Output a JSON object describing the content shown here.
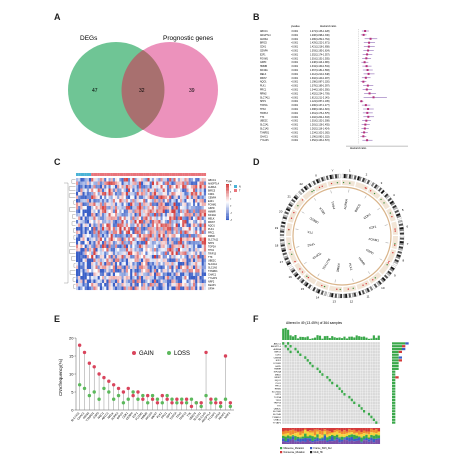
{
  "figure": {
    "panel_letters": [
      "A",
      "B",
      "C",
      "D",
      "E",
      "F"
    ]
  },
  "venn": {
    "left_label": "DEGs",
    "right_label": "Prognostic genes",
    "left_only": "47",
    "overlap": "32",
    "right_only": "39",
    "left_color": "#5fbf8a",
    "right_color": "#e97fb0"
  },
  "forest": {
    "header_gene": "",
    "header_pvalue": "pvalue",
    "header_hr": "Hazard ratio",
    "xlabel": "Hazard ratio",
    "rows": [
      {
        "gene": "ABCC1",
        "p": "<0.001",
        "hr": "1.274(1.136-1.428)",
        "est": 1.27,
        "lo": 1.14,
        "hi": 1.43
      },
      {
        "gene": "ANGPTL4",
        "p": "<0.001",
        "hr": "1.208(1.098-1.330)",
        "est": 1.21,
        "lo": 1.1,
        "hi": 1.33
      },
      {
        "gene": "AURKA",
        "p": "<0.001",
        "hr": "1.486(1.252-1.764)",
        "est": 1.49,
        "lo": 1.25,
        "hi": 1.76
      },
      {
        "gene": "BIRC5",
        "p": "<0.001",
        "hr": "1.429(1.222-1.671)",
        "est": 1.43,
        "lo": 1.22,
        "hi": 1.67
      },
      {
        "gene": "CDK1",
        "p": "<0.001",
        "hr": "1.421(1.218-1.658)",
        "est": 1.42,
        "lo": 1.22,
        "hi": 1.66
      },
      {
        "gene": "CENPA",
        "p": "<0.001",
        "hr": "1.393(1.195-1.624)",
        "est": 1.39,
        "lo": 1.2,
        "hi": 1.62
      },
      {
        "gene": "E2F1",
        "p": "<0.001",
        "hr": "1.352(1.174-1.557)",
        "est": 1.35,
        "lo": 1.17,
        "hi": 1.56
      },
      {
        "gene": "FOXM1",
        "p": "<0.001",
        "hr": "1.316(1.151-1.505)",
        "est": 1.32,
        "lo": 1.15,
        "hi": 1.51
      },
      {
        "gene": "G6PD",
        "p": "<0.001",
        "hr": "1.248(1.116-1.396)",
        "est": 1.25,
        "lo": 1.12,
        "hi": 1.4
      },
      {
        "gene": "HMMR",
        "p": "<0.001",
        "hr": "1.334(1.160-1.534)",
        "est": 1.33,
        "lo": 1.16,
        "hi": 1.53
      },
      {
        "gene": "KIF20A",
        "p": "<0.001",
        "hr": "1.367(1.181-1.583)",
        "est": 1.37,
        "lo": 1.18,
        "hi": 1.58
      },
      {
        "gene": "MELK",
        "p": "<0.001",
        "hr": "1.412(1.210-1.648)",
        "est": 1.41,
        "lo": 1.21,
        "hi": 1.65
      },
      {
        "gene": "MKI67",
        "p": "<0.001",
        "hr": "1.302(1.140-1.487)",
        "est": 1.3,
        "lo": 1.14,
        "hi": 1.49
      },
      {
        "gene": "NQO1",
        "p": "<0.001",
        "hr": "1.198(1.087-1.320)",
        "est": 1.2,
        "lo": 1.09,
        "hi": 1.32
      },
      {
        "gene": "PLK1",
        "p": "<0.001",
        "hr": "1.378(1.189-1.597)",
        "est": 1.38,
        "lo": 1.19,
        "hi": 1.6
      },
      {
        "gene": "PRC1",
        "p": "<0.001",
        "hr": "1.344(1.165-1.550)",
        "est": 1.34,
        "lo": 1.17,
        "hi": 1.55
      },
      {
        "gene": "RRM2",
        "p": "<0.001",
        "hr": "1.452(1.234-1.709)",
        "est": 1.45,
        "lo": 1.23,
        "hi": 1.71
      },
      {
        "gene": "SLC7A11",
        "p": "<0.001",
        "hr": "1.612(1.211-2.145)",
        "est": 1.61,
        "lo": 1.21,
        "hi": 2.15
      },
      {
        "gene": "SPP1",
        "p": "<0.001",
        "hr": "1.124(1.057-1.195)",
        "est": 1.12,
        "lo": 1.06,
        "hi": 1.2
      },
      {
        "gene": "TOP2A",
        "p": "<0.001",
        "hr": "1.296(1.137-1.477)",
        "est": 1.3,
        "lo": 1.14,
        "hi": 1.48
      },
      {
        "gene": "TPX2",
        "p": "<0.001",
        "hr": "1.388(1.193-1.615)",
        "est": 1.39,
        "lo": 1.19,
        "hi": 1.62
      },
      {
        "gene": "TRIP13",
        "p": "<0.001",
        "hr": "1.361(1.176-1.575)",
        "est": 1.36,
        "lo": 1.18,
        "hi": 1.58
      },
      {
        "gene": "TTK",
        "p": "<0.001",
        "hr": "1.402(1.204-1.633)",
        "est": 1.4,
        "lo": 1.2,
        "hi": 1.63
      },
      {
        "gene": "UBE2C",
        "p": "<0.001",
        "hr": "1.318(1.152-1.508)",
        "est": 1.32,
        "lo": 1.15,
        "hi": 1.51
      },
      {
        "gene": "SLC2A1",
        "p": "<0.001",
        "hr": "1.281(1.128-1.455)",
        "est": 1.28,
        "lo": 1.13,
        "hi": 1.46
      },
      {
        "gene": "SLC1A5",
        "p": "<0.001",
        "hr": "1.262(1.118-1.424)",
        "est": 1.26,
        "lo": 1.12,
        "hi": 1.42
      },
      {
        "gene": "TXNRD1",
        "p": "<0.001",
        "hr": "1.234(1.102-1.382)",
        "est": 1.23,
        "lo": 1.1,
        "hi": 1.38
      },
      {
        "gene": "CHAC1",
        "p": "<0.001",
        "hr": "1.196(1.082-1.322)",
        "est": 1.2,
        "lo": 1.08,
        "hi": 1.32
      },
      {
        "gene": "YY1AP1",
        "p": "<0.001",
        "hr": "1.352(1.163-1.572)",
        "est": 1.35,
        "lo": 1.16,
        "hi": 1.57
      }
    ],
    "axis_min": 0.5,
    "axis_max": 3.0,
    "ref_line": 1.0,
    "box_color": "#b5307a",
    "line_color": "#7a4ea8"
  },
  "heatmap": {
    "legend_title": "Type",
    "legend_items": [
      "N",
      "T"
    ],
    "normal_color": "#4bb3d6",
    "tumor_color": "#e9747a",
    "low_color": "#3a5fc7",
    "mid_color": "#ffffff",
    "high_color": "#d43a3a",
    "scale_ticks": [
      "6",
      "4",
      "2",
      "0",
      "-2",
      "-4"
    ],
    "genes": [
      "ABCC1",
      "ANGPTL4",
      "AURKA",
      "BIRC5",
      "CDK1",
      "CENPA",
      "E2F1",
      "FOXM1",
      "G6PD",
      "HMMR",
      "KIF20A",
      "MELK",
      "MKI67",
      "NQO1",
      "PLK1",
      "PRC1",
      "RRM2",
      "SLC7A11",
      "SPP1",
      "TOP2A",
      "TPX2",
      "TRIP13",
      "TTK",
      "UBE2C",
      "SLC2A1",
      "SLC1A5",
      "TXNRD1",
      "CHAC1",
      "YY1AP1",
      "NRF2",
      "KEAP1",
      "GPX4"
    ]
  },
  "circos": {
    "chromosomes": [
      "1",
      "2",
      "3",
      "4",
      "5",
      "6",
      "7",
      "8",
      "9",
      "10",
      "11",
      "12",
      "13",
      "14",
      "15",
      "16",
      "17",
      "18",
      "19",
      "20",
      "21",
      "22",
      "X",
      "Y"
    ],
    "genes": [
      "AURKA",
      "BIRC5",
      "CDK1",
      "E2F1",
      "FOXM1",
      "G6PD",
      "HMMR",
      "PLK1",
      "RRM2",
      "SLC7A11",
      "TOP2A",
      "TPX2",
      "TTK",
      "UBE2C",
      "MELK",
      "PRC1"
    ],
    "ring_color": "#d9b48a",
    "gain_color": "#d43a3a",
    "loss_color": "#3a8a3a"
  },
  "lollipop": {
    "ylabel": "CNV.frequency(%)",
    "legend_gain": "GAIN",
    "legend_loss": "LOSS",
    "gain_color": "#d9445c",
    "loss_color": "#5cb85c",
    "y_ticks": [
      "0",
      "5",
      "10",
      "15",
      "20"
    ]
  },
  "chart_data": [
    {
      "type": "scatter",
      "title": "",
      "ylabel": "CNV.frequency(%)",
      "ylim": [
        0,
        20
      ],
      "categories": [
        "SLC7A11",
        "CHAC1",
        "RRM2",
        "TXNRD1",
        "G6PD",
        "NQO1",
        "ABCC1",
        "MELK",
        "AURKA",
        "BIRC5",
        "CDK1",
        "CENPA",
        "E2F1",
        "FOXM1",
        "HMMR",
        "KIF20A",
        "MKI67",
        "PLK1",
        "PRC1",
        "SPP1",
        "TOP2A",
        "TPX2",
        "TRIP13",
        "TTK",
        "UBE2C",
        "SLC2A1",
        "SLC1A5",
        "ANGPTL4",
        "YY1AP1",
        "GPX4",
        "KEAP1",
        "NRF2"
      ],
      "series": [
        {
          "name": "GAIN",
          "values": [
            18,
            16,
            13,
            12,
            10,
            9,
            8,
            7,
            6,
            5,
            6,
            4,
            5,
            3,
            4,
            3,
            2,
            4,
            3,
            2,
            3,
            2,
            3,
            1,
            2,
            2,
            16,
            3,
            2,
            2,
            15,
            2
          ]
        },
        {
          "name": "LOSS",
          "values": [
            7,
            6,
            4,
            5,
            3,
            6,
            5,
            3,
            4,
            2,
            3,
            5,
            3,
            4,
            2,
            4,
            3,
            2,
            4,
            3,
            2,
            3,
            2,
            3,
            2,
            1,
            4,
            2,
            3,
            1,
            3,
            1
          ]
        }
      ],
      "legend": "top-right",
      "grid": false
    },
    {
      "type": "bar",
      "title": "Altered in 49 (13.45%) of 364 samples",
      "categories": [
        "ABCC1",
        "ANGPTL4",
        "AURKA",
        "BIRC5",
        "CDK1",
        "CENPA",
        "E2F1",
        "FOXM1",
        "G6PD",
        "HMMR",
        "KIF20A",
        "MELK",
        "MKI67",
        "NQO1",
        "PLK1",
        "PRC1",
        "RRM2",
        "SLC7A11",
        "SPP1",
        "TOP2A",
        "TPX2",
        "TRIP13",
        "TTK",
        "UBE2C",
        "SLC2A1",
        "SLC1A5",
        "TXNRD1",
        "CHAC1",
        "YY1AP1"
      ],
      "series": [
        {
          "name": "Missense_Mutation",
          "values": [
            4,
            3,
            3,
            2,
            2,
            2,
            2,
            2,
            2,
            2,
            1,
            1,
            1,
            1,
            1,
            1,
            1,
            1,
            1,
            1,
            1,
            1,
            1,
            1,
            1,
            1,
            1,
            1,
            1
          ]
        },
        {
          "name": "Frame_Shift_Del",
          "values": [
            1,
            0,
            1,
            0,
            0,
            1,
            0,
            0,
            0,
            0,
            0,
            0,
            0,
            0,
            0,
            0,
            0,
            0,
            0,
            0,
            0,
            0,
            0,
            0,
            0,
            0,
            0,
            0,
            0
          ]
        },
        {
          "name": "Nonsense_Mutation",
          "values": [
            0,
            1,
            0,
            1,
            0,
            0,
            1,
            0,
            0,
            0,
            0,
            0,
            1,
            0,
            0,
            0,
            0,
            0,
            0,
            0,
            0,
            0,
            0,
            0,
            0,
            0,
            0,
            0,
            0
          ]
        }
      ],
      "legend": "bottom-right"
    }
  ],
  "oncoplot": {
    "title": "Altered in 49 (13.45%) of 364 samples",
    "legend": [
      "Missense_Mutation",
      "Frame_Shift_Del",
      "Nonsense_Mutation",
      "Multi_Hit"
    ],
    "legend_colors": [
      "#3aa84a",
      "#3a5fc7",
      "#d43a3a",
      "#222222"
    ],
    "stack_colors": [
      "#d43a3a",
      "#f08c2e",
      "#f5d43a",
      "#3aa84a",
      "#3a5fc7",
      "#7a4ea8"
    ],
    "bg_color": "#d9d9d9",
    "mut_color": "#3aa84a"
  }
}
